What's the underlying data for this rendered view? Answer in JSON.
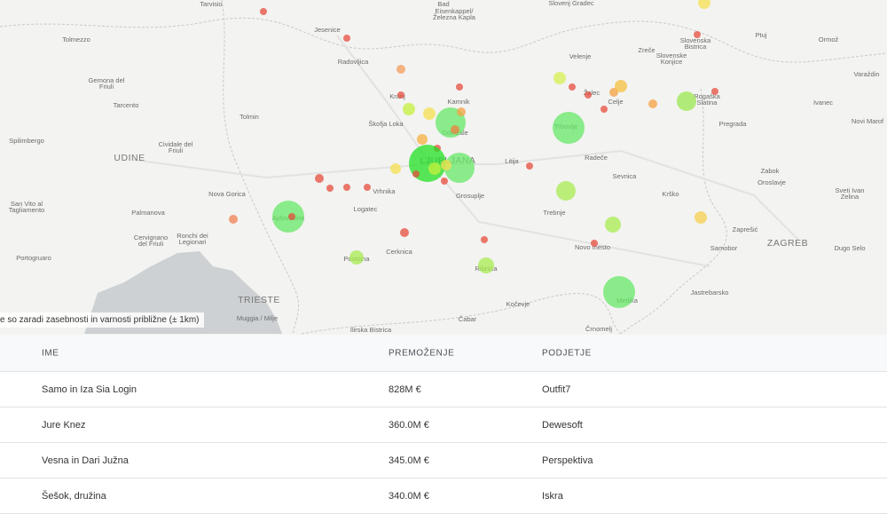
{
  "map": {
    "labels": [
      "Tarvisio",
      "Bad",
      "Eisenkappel/",
      "Železna Kapla",
      "Slovenj Gradec",
      "Jesenice",
      "Tolmezzo",
      "Radovljica",
      "Zreče",
      "Slovenska",
      "Bistrica",
      "Ptuj",
      "Ormož",
      "Velenje",
      "Slovenske",
      "Konjice",
      "Varaždin",
      "Gemona del",
      "Friuli",
      "Kranj",
      "Kamnik",
      "Žalec",
      "Celje",
      "Rogaška",
      "Slatina",
      "Tarcento",
      "Tolmin",
      "Škofja Loka",
      "Domžale",
      "Ivanec",
      "Novi Marof",
      "Pregrada",
      "Trbovlje",
      "Spilimbergo",
      "Cividale del",
      "Friuli",
      "UDINE",
      "LJUBLJANA",
      "Litija",
      "Radeče",
      "Sevnica",
      "Zabok",
      "Oroslavje",
      "Nova Gorica",
      "Vrhnika",
      "Grosuplje",
      "Krško",
      "Sveti Ivan",
      "Zelina",
      "San Vito al",
      "Tagliamento",
      "Ajdovščina",
      "Logatec",
      "Palmanova",
      "Trebnje",
      "Zaprešić",
      "ZAGREB",
      "Cervignano",
      "del Friuli",
      "Ronchi dei",
      "Legionari",
      "Cerknica",
      "Novo mesto",
      "Samobor",
      "Dugo Selo",
      "Portogruaro",
      "Postojna",
      "Ribnica",
      "Jastrebarsko",
      "Metlika",
      "TRIESTE",
      "Kočevje",
      "Muggia / Milje",
      "Čabar",
      "Ilirska Bistrica",
      "Črnomelj"
    ],
    "notice": "e so zaradi zasebnosti in varnosti približne (± 1km)"
  },
  "table": {
    "headers": [
      "IME",
      "PREMOŽENJE",
      "PODJETJE"
    ],
    "rows": [
      [
        "Samo in Iza Sia Login",
        "828M €",
        "Outfit7"
      ],
      [
        "Jure Knez",
        "360.0M €",
        "Dewesoft"
      ],
      [
        "Vesna in Dari Južna",
        "345.0M €",
        "Perspektiva"
      ],
      [
        "Šešok, družina",
        "340.0M €",
        "Iskra"
      ]
    ]
  }
}
